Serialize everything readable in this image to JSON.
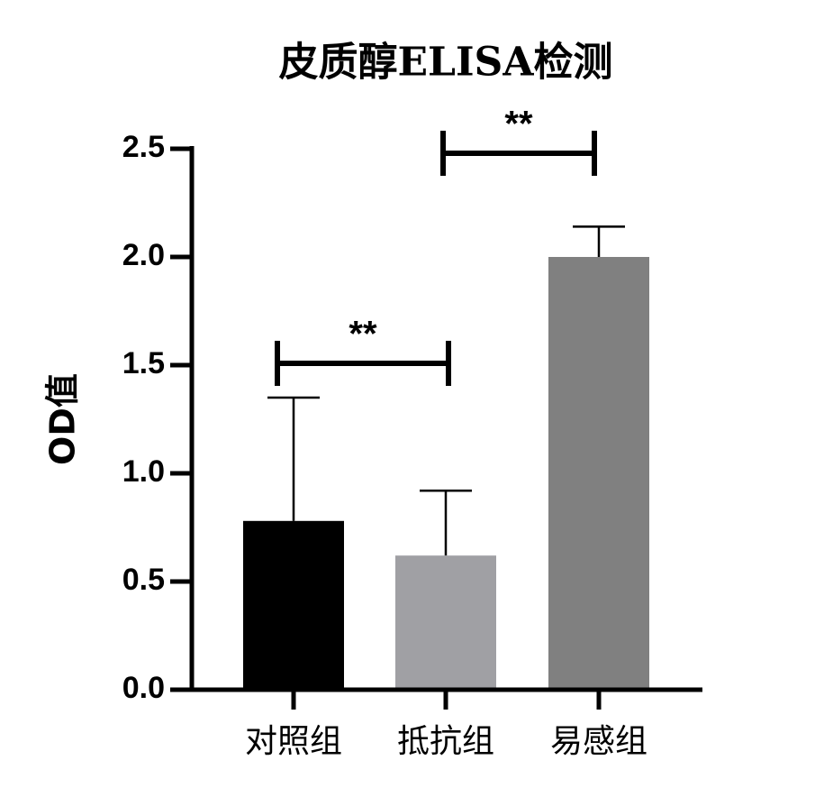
{
  "chart_data": {
    "type": "bar",
    "title": "皮质醇ELISA检测",
    "y_label": "OD值",
    "categories": [
      "对照组",
      "抵抗组",
      "易感组"
    ],
    "values": [
      0.78,
      0.62,
      2.0
    ],
    "errors": [
      0.57,
      0.3,
      0.14
    ],
    "colors": [
      "#000000",
      "#a0a0a4",
      "#808080"
    ],
    "ylim": [
      0,
      2.5
    ],
    "yticks": [
      {
        "value": 0,
        "label": "0.0"
      },
      0.5,
      {
        "value": 1,
        "label": "1.0"
      },
      1.5,
      {
        "value": 2,
        "label": "2.0"
      },
      2.5
    ],
    "annotations": [
      {
        "text": "**",
        "between": [
          "对照组",
          "抵抗组"
        ]
      },
      {
        "text": "**",
        "between": [
          "抵抗组",
          "易感组"
        ]
      }
    ]
  }
}
